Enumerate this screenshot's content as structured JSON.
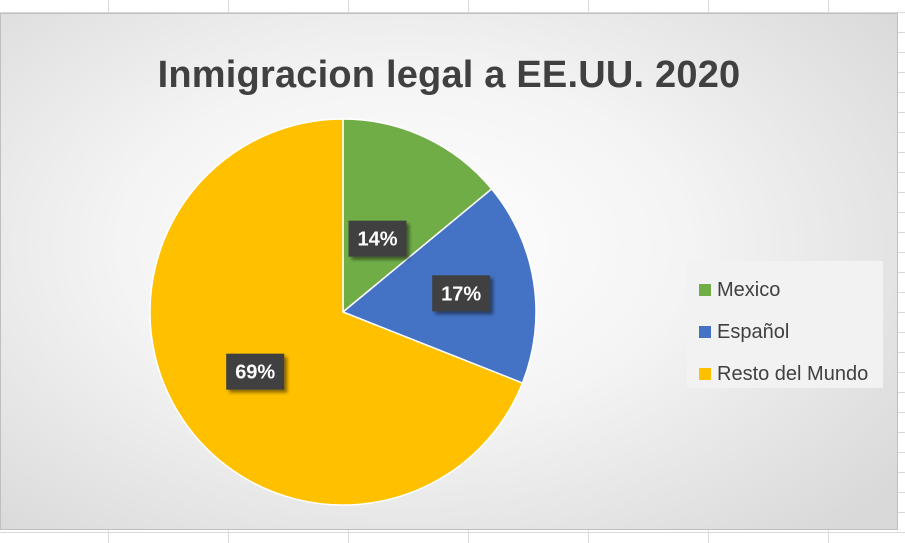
{
  "chart_data": {
    "type": "pie",
    "title": "Inmigracion legal a EE.UU. 2020",
    "categories": [
      "Mexico",
      "Español",
      "Resto del Mundo"
    ],
    "values": [
      14,
      17,
      69
    ],
    "labels": [
      "14%",
      "17%",
      "69%"
    ],
    "colors": [
      "#70ad47",
      "#4472c4",
      "#ffc000"
    ],
    "start_angle_deg": 0,
    "direction": "clockwise",
    "legend_position": "right"
  }
}
